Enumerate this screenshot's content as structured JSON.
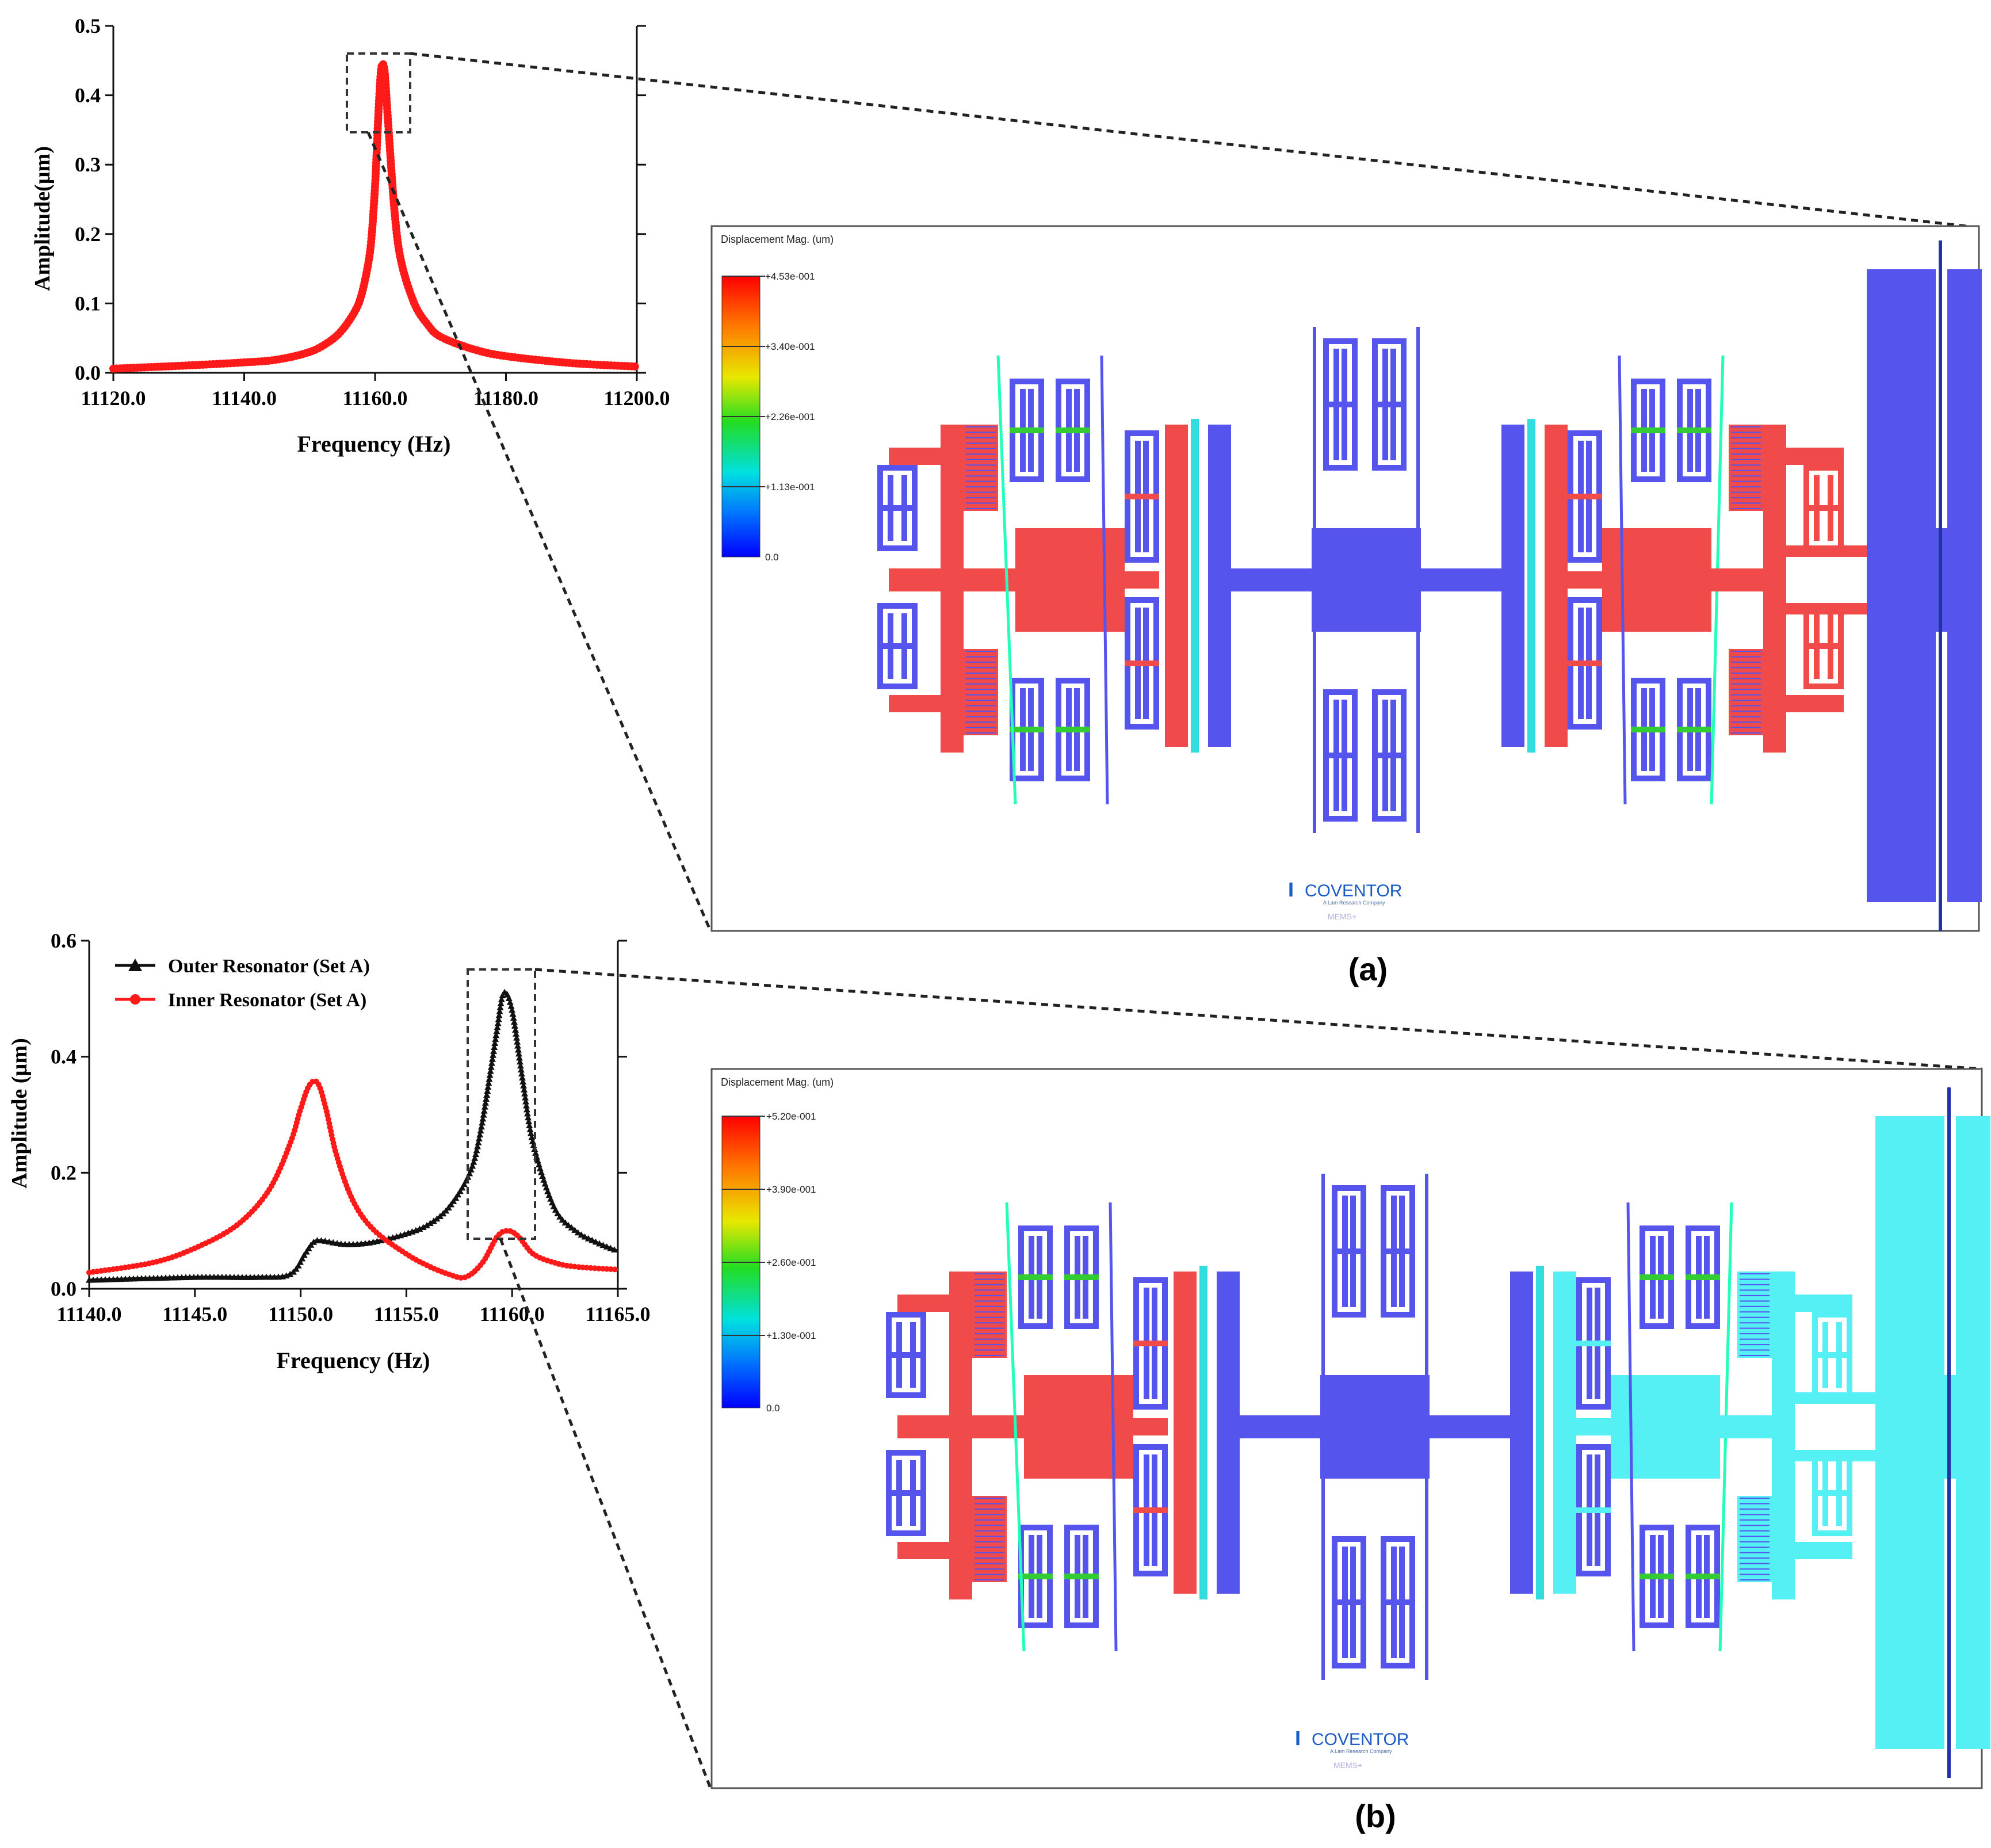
{
  "colors": {
    "red": "#f04a4a",
    "blue": "#5555ee",
    "cyan": "#55f0f4",
    "curve_red": "#ff1a1a",
    "curve_black": "#111111",
    "frame": "#555555"
  },
  "chart_data": [
    {
      "type": "line",
      "panel": "top",
      "xlabel": "Frequency (Hz)",
      "ylabel": "Amplitude(µm)",
      "xlim": [
        11120,
        11200
      ],
      "ylim": [
        0,
        0.5
      ],
      "xticks": [
        "11120.0",
        "11140.0",
        "11160.0",
        "11180.0",
        "11200.0"
      ],
      "yticks": [
        "0.0",
        "0.1",
        "0.2",
        "0.3",
        "0.4",
        "0.5"
      ],
      "grid": false,
      "series": [
        {
          "name": "",
          "color": "#ff1a1a",
          "marker": "circle",
          "x": [
            11120,
            11130,
            11140,
            11145,
            11150,
            11153,
            11155,
            11157,
            11158,
            11159,
            11159.5,
            11160,
            11160.3,
            11160.6,
            11160.9,
            11161.2,
            11161.5,
            11162,
            11163,
            11164,
            11166,
            11168,
            11170,
            11175,
            11180,
            11190,
            11200
          ],
          "y": [
            0.006,
            0.01,
            0.015,
            0.019,
            0.03,
            0.045,
            0.062,
            0.09,
            0.115,
            0.16,
            0.2,
            0.27,
            0.33,
            0.39,
            0.435,
            0.445,
            0.43,
            0.36,
            0.23,
            0.16,
            0.1,
            0.07,
            0.052,
            0.034,
            0.024,
            0.014,
            0.009
          ]
        }
      ],
      "annotations": [
        "zoom box around peak"
      ]
    },
    {
      "type": "line",
      "panel": "bottom",
      "xlabel": "Frequency (Hz)",
      "ylabel": "Amplitude (µm)",
      "xlim": [
        11140,
        11165
      ],
      "ylim": [
        0,
        0.6
      ],
      "xticks": [
        "11140.0",
        "11145.0",
        "11150.0",
        "11155.0",
        "11160.0",
        "11165.0"
      ],
      "yticks": [
        "0.0",
        "0.2",
        "0.4",
        "0.6"
      ],
      "grid": false,
      "legend_position": "top-left",
      "series": [
        {
          "name": "Outer Resonator (Set A)",
          "color": "#111111",
          "marker": "triangle",
          "x": [
            11140,
            11145,
            11148,
            11149.5,
            11150.2,
            11150.6,
            11151,
            11152,
            11153,
            11154,
            11155,
            11156,
            11157,
            11158,
            11158.5,
            11159,
            11159.3,
            11159.6,
            11160,
            11160.5,
            11161,
            11162,
            11163,
            11164,
            11165
          ],
          "y": [
            0.015,
            0.02,
            0.02,
            0.025,
            0.06,
            0.08,
            0.083,
            0.077,
            0.078,
            0.085,
            0.095,
            0.11,
            0.14,
            0.2,
            0.27,
            0.38,
            0.45,
            0.51,
            0.48,
            0.36,
            0.25,
            0.14,
            0.1,
            0.08,
            0.065
          ]
        },
        {
          "name": "Inner Resonator (Set A)",
          "color": "#ff1a1a",
          "marker": "circle",
          "x": [
            11140,
            11143,
            11145,
            11147,
            11148.5,
            11149.5,
            11150,
            11150.4,
            11150.8,
            11151.2,
            11151.7,
            11152.5,
            11153.5,
            11155,
            11156,
            11157,
            11157.8,
            11158.6,
            11159.3,
            11159.8,
            11160.3,
            11161,
            11162,
            11163,
            11165
          ],
          "y": [
            0.028,
            0.045,
            0.07,
            0.11,
            0.17,
            0.25,
            0.31,
            0.35,
            0.355,
            0.31,
            0.23,
            0.15,
            0.1,
            0.06,
            0.04,
            0.025,
            0.02,
            0.045,
            0.09,
            0.1,
            0.09,
            0.06,
            0.045,
            0.038,
            0.033
          ]
        }
      ],
      "annotations": [
        "zoom box around outer peak"
      ]
    }
  ],
  "figure": {
    "panel_a_label": "(a)",
    "panel_b_label": "(b)"
  },
  "sim_a": {
    "title": "Displacement Mag. (um)",
    "colorbar_ticks": [
      "+4.53e-001",
      "+3.40e-001",
      "+2.26e-001",
      "+1.13e-001",
      "0.0"
    ],
    "logo_text": "COVENTOR",
    "logo_sub": "A Lam Research Company",
    "logo_small": "MEMS+"
  },
  "sim_b": {
    "title": "Displacement Mag. (um)",
    "colorbar_ticks": [
      "+5.20e-001",
      "+3.90e-001",
      "+2.60e-001",
      "+1.30e-001",
      "0.0"
    ],
    "logo_text": "COVENTOR",
    "logo_sub": "A Lam Research Company",
    "logo_small": "MEMS+"
  }
}
